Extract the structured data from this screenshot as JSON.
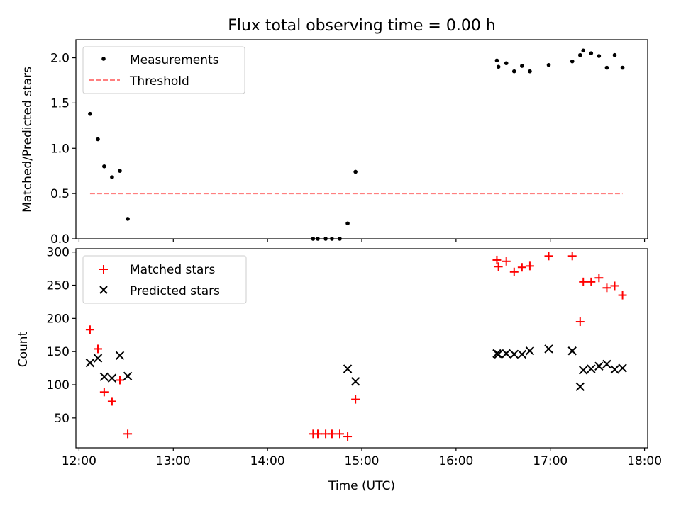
{
  "chart_data": {
    "title": "Flux total observing time = 0.00 h",
    "xlabel": "Time (UTC)",
    "x_axis": {
      "type": "time",
      "xlim": [
        "11:58",
        "18:02"
      ],
      "ticks": [
        "12:00",
        "13:00",
        "14:00",
        "15:00",
        "16:00",
        "17:00",
        "18:00"
      ]
    },
    "panels": [
      {
        "id": "ratio",
        "type": "scatter",
        "ylabel": "Matched/Predicted stars",
        "ylim": [
          0,
          2.2
        ],
        "yticks": [
          "0.0",
          "0.5",
          "1.0",
          "1.5",
          "2.0"
        ],
        "legend_position": "upper-left",
        "series": [
          {
            "name": "Measurements",
            "marker": "dot",
            "color": "#000000",
            "points": [
              [
                "12:07",
                1.38
              ],
              [
                "12:12",
                1.1
              ],
              [
                "12:16",
                0.8
              ],
              [
                "12:21",
                0.68
              ],
              [
                "12:26",
                0.75
              ],
              [
                "12:31",
                0.22
              ],
              [
                "14:29",
                0.0
              ],
              [
                "14:32",
                0.0
              ],
              [
                "14:37",
                0.0
              ],
              [
                "14:41",
                0.0
              ],
              [
                "14:46",
                0.0
              ],
              [
                "14:51",
                0.17
              ],
              [
                "14:56",
                0.74
              ],
              [
                "16:26",
                1.97
              ],
              [
                "16:27",
                1.9
              ],
              [
                "16:32",
                1.94
              ],
              [
                "16:37",
                1.85
              ],
              [
                "16:42",
                1.91
              ],
              [
                "16:47",
                1.85
              ],
              [
                "16:59",
                1.92
              ],
              [
                "17:14",
                1.96
              ],
              [
                "17:19",
                2.03
              ],
              [
                "17:21",
                2.08
              ],
              [
                "17:26",
                2.05
              ],
              [
                "17:31",
                2.02
              ],
              [
                "17:36",
                1.89
              ],
              [
                "17:41",
                2.03
              ],
              [
                "17:46",
                1.89
              ]
            ]
          },
          {
            "name": "Threshold",
            "marker": "dashed-line",
            "color": "#ff7f7f",
            "points": [
              [
                "12:07",
                0.5
              ],
              [
                "17:46",
                0.5
              ]
            ]
          }
        ]
      },
      {
        "id": "counts",
        "type": "scatter",
        "ylabel": "Count",
        "ylim": [
          5,
          305
        ],
        "yticks": [
          "50",
          "100",
          "150",
          "200",
          "250",
          "300"
        ],
        "legend_position": "upper-left",
        "series": [
          {
            "name": "Matched stars",
            "marker": "plus",
            "color": "#ff0000",
            "points": [
              [
                "12:07",
                183
              ],
              [
                "12:12",
                154
              ],
              [
                "12:16",
                89
              ],
              [
                "12:21",
                75
              ],
              [
                "12:26",
                107
              ],
              [
                "12:31",
                26
              ],
              [
                "14:29",
                26
              ],
              [
                "14:32",
                26
              ],
              [
                "14:37",
                26
              ],
              [
                "14:41",
                26
              ],
              [
                "14:46",
                26
              ],
              [
                "14:51",
                22
              ],
              [
                "14:56",
                78
              ],
              [
                "16:26",
                288
              ],
              [
                "16:27",
                278
              ],
              [
                "16:32",
                286
              ],
              [
                "16:37",
                270
              ],
              [
                "16:42",
                277
              ],
              [
                "16:47",
                279
              ],
              [
                "16:59",
                294
              ],
              [
                "17:14",
                294
              ],
              [
                "17:19",
                195
              ],
              [
                "17:21",
                255
              ],
              [
                "17:26",
                255
              ],
              [
                "17:31",
                261
              ],
              [
                "17:36",
                246
              ],
              [
                "17:41",
                249
              ],
              [
                "17:46",
                235
              ]
            ]
          },
          {
            "name": "Predicted stars",
            "marker": "x",
            "color": "#000000",
            "points": [
              [
                "12:07",
                133
              ],
              [
                "12:12",
                140
              ],
              [
                "12:16",
                112
              ],
              [
                "12:21",
                110
              ],
              [
                "12:26",
                144
              ],
              [
                "12:31",
                113
              ],
              [
                "14:51",
                124
              ],
              [
                "14:56",
                105
              ],
              [
                "16:26",
                147
              ],
              [
                "16:27",
                146
              ],
              [
                "16:32",
                147
              ],
              [
                "16:37",
                146
              ],
              [
                "16:42",
                146
              ],
              [
                "16:47",
                151
              ],
              [
                "16:59",
                154
              ],
              [
                "17:14",
                151
              ],
              [
                "17:19",
                97
              ],
              [
                "17:21",
                122
              ],
              [
                "17:26",
                124
              ],
              [
                "17:31",
                128
              ],
              [
                "17:36",
                131
              ],
              [
                "17:41",
                123
              ],
              [
                "17:46",
                125
              ]
            ]
          }
        ]
      }
    ]
  }
}
